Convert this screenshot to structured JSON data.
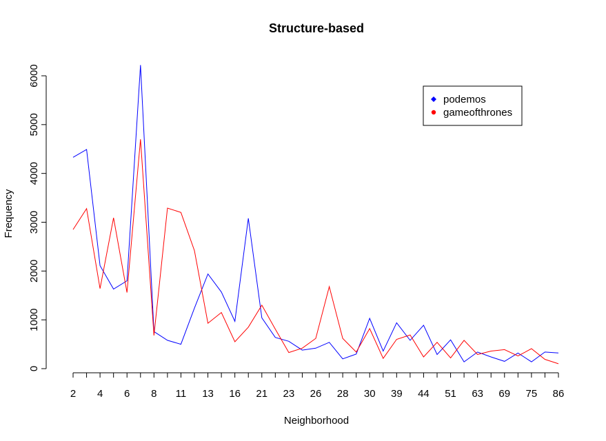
{
  "chart_data": {
    "type": "line",
    "title": "Structure-based",
    "xlabel": "Neighborhood",
    "ylabel": "Frequency",
    "ylim": [
      0,
      6000
    ],
    "yticks": [
      0,
      1000,
      2000,
      3000,
      4000,
      5000,
      6000
    ],
    "x_tick_labels": [
      "2",
      "4",
      "6",
      "8",
      "11",
      "13",
      "16",
      "21",
      "23",
      "26",
      "28",
      "30",
      "39",
      "44",
      "51",
      "63",
      "69",
      "75",
      "86"
    ],
    "legend_position": "top-right",
    "grid": false,
    "series": [
      {
        "name": "podemos",
        "color": "#0000ff",
        "values": [
          4330,
          4490,
          2110,
          1630,
          1800,
          6220,
          760,
          580,
          500,
          1240,
          1940,
          1570,
          970,
          3080,
          1040,
          640,
          560,
          380,
          420,
          540,
          200,
          300,
          1030,
          360,
          940,
          580,
          890,
          290,
          590,
          140,
          340,
          240,
          150,
          320,
          140,
          340,
          320
        ]
      },
      {
        "name": "gameofthrones",
        "color": "#ff0000",
        "values": [
          2850,
          3280,
          1640,
          3090,
          1560,
          4700,
          680,
          3290,
          3200,
          2420,
          930,
          1150,
          550,
          850,
          1300,
          810,
          330,
          420,
          620,
          1680,
          620,
          340,
          820,
          210,
          600,
          690,
          240,
          540,
          220,
          580,
          290,
          360,
          390,
          260,
          410,
          190,
          100
        ]
      }
    ]
  }
}
